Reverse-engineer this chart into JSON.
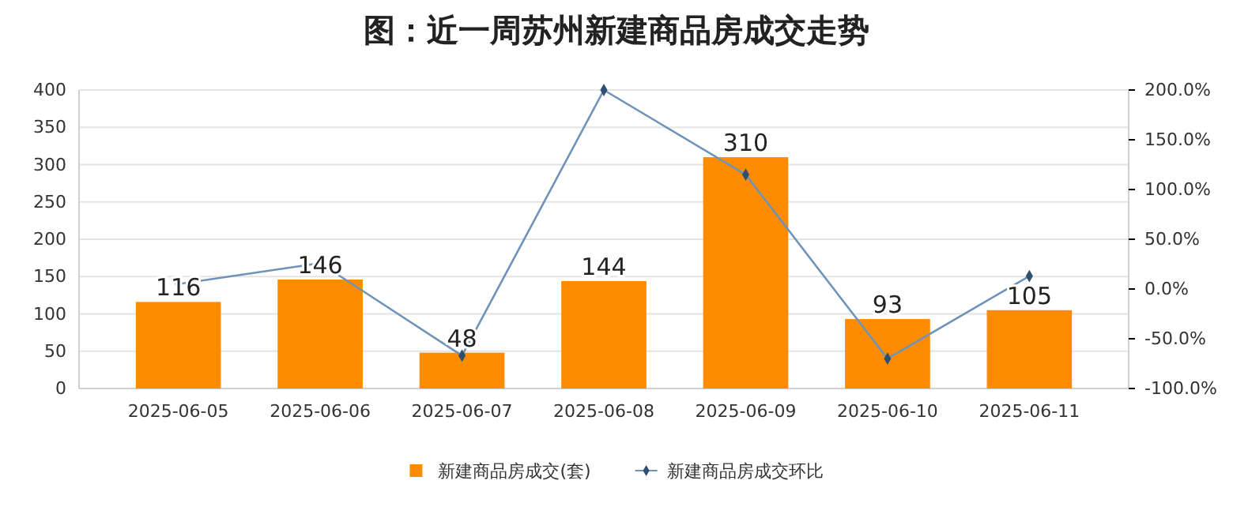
{
  "chart_data": {
    "type": "bar",
    "title": "图：近一周苏州新建商品房成交走势",
    "categories": [
      "2025-06-05",
      "2025-06-06",
      "2025-06-07",
      "2025-06-08",
      "2025-06-09",
      "2025-06-10",
      "2025-06-11"
    ],
    "series": [
      {
        "name": "新建商品房成交(套)",
        "color": "#ff8c00",
        "values": [
          116,
          146,
          48,
          144,
          310,
          93,
          105
        ],
        "data_labels": true
      },
      {
        "name": "新建商品房成交环比",
        "type": "line",
        "axis": "y2",
        "color": "#6f93b8",
        "marker": "diamond",
        "values": [
          5,
          26,
          -67,
          200,
          115,
          -70,
          13
        ]
      }
    ],
    "ylim": [
      0,
      400
    ],
    "yticks": [
      0,
      50,
      100,
      150,
      200,
      250,
      300,
      350,
      400
    ],
    "y2lim": [
      -100,
      200
    ],
    "y2ticks": [
      {
        "value": -100,
        "label": "-100.0%"
      },
      {
        "value": -50,
        "label": "-50.0%"
      },
      {
        "value": 0,
        "label": "0.0%"
      },
      {
        "value": 50,
        "label": "50.0%"
      },
      {
        "value": 100,
        "label": "100.0%"
      },
      {
        "value": 150,
        "label": "150.0%"
      },
      {
        "value": 200,
        "label": "200.0%"
      }
    ],
    "grid": "y",
    "legend": "bottom"
  }
}
